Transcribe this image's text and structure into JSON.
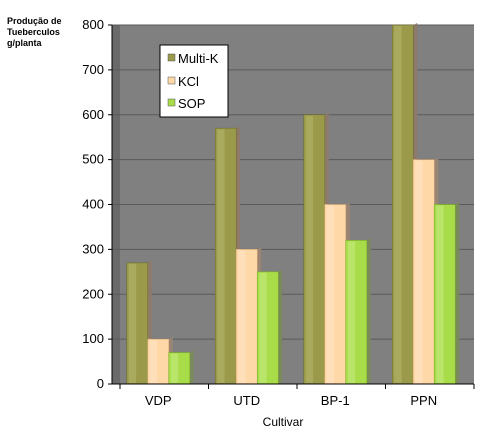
{
  "chart_data": {
    "type": "bar",
    "title": "",
    "ylabel_lines": [
      "Produção de",
      "Tueberculos",
      "g/planta"
    ],
    "xlabel": "Cultivar",
    "categories": [
      "VDP",
      "UTD",
      "BP-1",
      "PPN"
    ],
    "series": [
      {
        "name": "Multi-K",
        "values": [
          270,
          570,
          600,
          800
        ]
      },
      {
        "name": "KCl",
        "values": [
          100,
          300,
          400,
          500
        ]
      },
      {
        "name": "SOP",
        "values": [
          70,
          250,
          320,
          400
        ]
      }
    ],
    "ylim": [
      0,
      800
    ],
    "yticks": [
      0,
      100,
      200,
      300,
      400,
      500,
      600,
      700,
      800
    ],
    "grid": true,
    "legend_position": "top-left",
    "colors": {
      "plot_bg": "#808080",
      "wall_side": "#6a6a6a",
      "grid": "#5a5a5a",
      "series": [
        {
          "main": "#9a9a4a",
          "light": "#b8b870",
          "dark": "#6f6f2f",
          "shadow": "#8d7a6a"
        },
        {
          "main": "#ffd8a8",
          "light": "#ffe6c8",
          "dark": "#dcae78",
          "shadow": "#9a8474"
        },
        {
          "main": "#a8dc48",
          "light": "#c8ec88",
          "dark": "#7cb028",
          "shadow": "#7a8a5a"
        }
      ]
    }
  }
}
